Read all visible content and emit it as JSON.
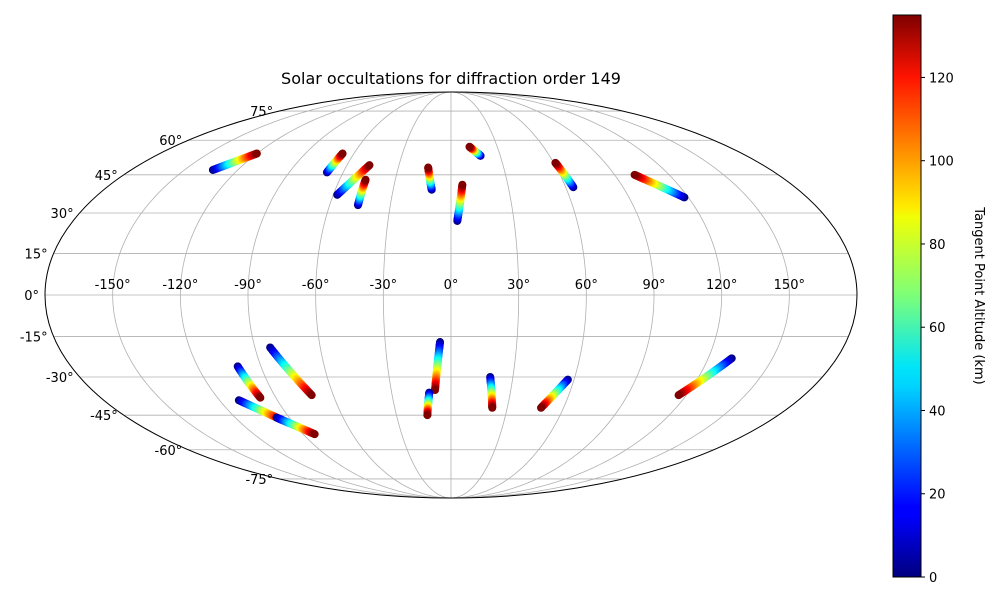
{
  "chart_data": {
    "type": "scatter",
    "projection": "mollweide",
    "title": "Solar occultations for diffraction order 149",
    "grid": true,
    "longitude_ticks": [
      -150,
      -120,
      -90,
      -60,
      -30,
      0,
      30,
      60,
      90,
      120,
      150
    ],
    "longitude_tick_labels": [
      "-150°",
      "-120°",
      "-90°",
      "-60°",
      "-30°",
      "0°",
      "30°",
      "60°",
      "90°",
      "120°",
      "150°"
    ],
    "latitude_ticks": [
      75,
      60,
      45,
      30,
      15,
      0,
      -15,
      -30,
      -45,
      -60,
      -75
    ],
    "latitude_tick_labels": [
      "75°",
      "60°",
      "45°",
      "30°",
      "15°",
      "0°",
      "-15°",
      "-30°",
      "-45°",
      "-60°",
      "-75°"
    ],
    "colorbar": {
      "label": "Tangent Point Altitude (km)",
      "colormap": "jet",
      "range": [
        0,
        135
      ],
      "ticks": [
        0,
        20,
        40,
        60,
        80,
        100,
        120
      ],
      "tick_labels": [
        "0",
        "20",
        "40",
        "60",
        "80",
        "100",
        "120"
      ],
      "placement": "right"
    },
    "point_size": "medium",
    "tracks": [
      {
        "lon_start": -134,
        "lat_start": 47,
        "lon_end": -120,
        "lat_end": 54,
        "alt_start": 0,
        "alt_end": 135
      },
      {
        "lon_start": -69,
        "lat_start": 46,
        "lon_end": -67,
        "lat_end": 54,
        "alt_start": 0,
        "alt_end": 135
      },
      {
        "lon_start": -58,
        "lat_start": 37,
        "lon_end": -47,
        "lat_end": 49,
        "alt_start": 0,
        "alt_end": 135
      },
      {
        "lon_start": -46,
        "lat_start": 33,
        "lon_end": -46,
        "lat_end": 43,
        "alt_start": 0,
        "alt_end": 135
      },
      {
        "lon_start": -10,
        "lat_start": 39,
        "lon_end": -13,
        "lat_end": 48,
        "alt_start": 0,
        "alt_end": 135
      },
      {
        "lon_start": 3,
        "lat_start": 27,
        "lon_end": 6,
        "lat_end": 41,
        "alt_start": 0,
        "alt_end": 135
      },
      {
        "lon_start": 18,
        "lat_start": 53,
        "lon_end": 12,
        "lat_end": 57,
        "alt_start": 0,
        "alt_end": 135
      },
      {
        "lon_start": 64,
        "lat_start": 40,
        "lon_end": 61,
        "lat_end": 50,
        "alt_start": 0,
        "alt_end": 135
      },
      {
        "lon_start": 118,
        "lat_start": 36,
        "lon_end": 101,
        "lat_end": 45,
        "alt_start": 0,
        "alt_end": 135
      },
      {
        "lon_start": -101,
        "lat_start": -26,
        "lon_end": -98,
        "lat_end": -38,
        "alt_start": 0,
        "alt_end": 135
      },
      {
        "lon_start": -110,
        "lat_start": -39,
        "lon_end": -95,
        "lat_end": -47,
        "alt_start": 0,
        "alt_end": 135
      },
      {
        "lon_start": -97,
        "lat_start": -46,
        "lon_end": -83,
        "lat_end": -53,
        "alt_start": 0,
        "alt_end": 135
      },
      {
        "lon_start": -83,
        "lat_start": -19,
        "lon_end": -71,
        "lat_end": -37,
        "alt_start": 0,
        "alt_end": 135
      },
      {
        "lon_start": -5,
        "lat_start": -17,
        "lon_end": -8,
        "lat_end": -35,
        "alt_start": 0,
        "alt_end": 135
      },
      {
        "lon_start": -11,
        "lat_start": -36,
        "lon_end": -13,
        "lat_end": -45,
        "alt_start": 0,
        "alt_end": 135
      },
      {
        "lon_start": 19,
        "lat_start": -30,
        "lon_end": 22,
        "lat_end": -42,
        "alt_start": 0,
        "alt_end": 135
      },
      {
        "lon_start": 57,
        "lat_start": -31,
        "lon_end": 48,
        "lat_end": -42,
        "alt_start": 0,
        "alt_end": 135
      },
      {
        "lon_start": 131,
        "lat_start": -23,
        "lon_end": 116,
        "lat_end": -37,
        "alt_start": 0,
        "alt_end": 135
      }
    ]
  }
}
